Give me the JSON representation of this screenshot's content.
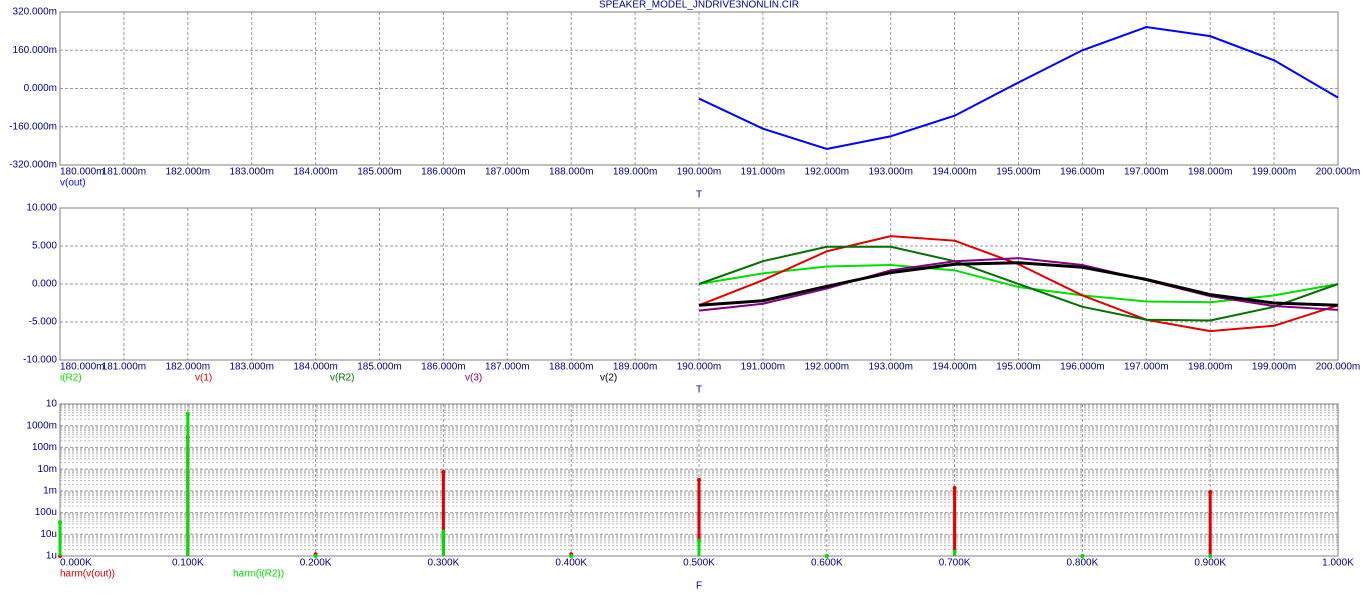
{
  "chart_data": [
    {
      "type": "line",
      "title": "SPEAKER_MODEL_JNDRIVE3NONLIN.CIR",
      "xlabel": "T",
      "xlim": [
        0.18,
        0.2
      ],
      "xticks": [
        {
          "value": 0.18,
          "label": "180.000m"
        },
        {
          "value": 0.181,
          "label": "181.000m"
        },
        {
          "value": 0.182,
          "label": "182.000m"
        },
        {
          "value": 0.183,
          "label": "183.000m"
        },
        {
          "value": 0.184,
          "label": "184.000m"
        },
        {
          "value": 0.185,
          "label": "185.000m"
        },
        {
          "value": 0.186,
          "label": "186.000m"
        },
        {
          "value": 0.187,
          "label": "187.000m"
        },
        {
          "value": 0.188,
          "label": "188.000m"
        },
        {
          "value": 0.189,
          "label": "189.000m"
        },
        {
          "value": 0.19,
          "label": "190.000m"
        },
        {
          "value": 0.191,
          "label": "191.000m"
        },
        {
          "value": 0.192,
          "label": "192.000m"
        },
        {
          "value": 0.193,
          "label": "193.000m"
        },
        {
          "value": 0.194,
          "label": "194.000m"
        },
        {
          "value": 0.195,
          "label": "195.000m"
        },
        {
          "value": 0.196,
          "label": "196.000m"
        },
        {
          "value": 0.197,
          "label": "197.000m"
        },
        {
          "value": 0.198,
          "label": "198.000m"
        },
        {
          "value": 0.199,
          "label": "199.000m"
        },
        {
          "value": 0.2,
          "label": "200.000m"
        }
      ],
      "ylim": [
        -0.32,
        0.32
      ],
      "yticks": [
        {
          "value": 0.32,
          "label": "320.000m"
        },
        {
          "value": 0.16,
          "label": "160.000m"
        },
        {
          "value": 0,
          "label": "0.000m"
        },
        {
          "value": -0.16,
          "label": "-160.000m"
        },
        {
          "value": -0.32,
          "label": "-320.000m"
        }
      ],
      "grid": true,
      "x": [
        0.19,
        0.191,
        0.192,
        0.193,
        0.194,
        0.195,
        0.196,
        0.197,
        0.198,
        0.199,
        0.2
      ],
      "series": [
        {
          "name": "v(out)",
          "color": "#0000ff",
          "values": [
            -0.042,
            -0.168,
            -0.253,
            -0.2,
            -0.114,
            0.025,
            0.16,
            0.257,
            0.219,
            0.118,
            -0.038
          ]
        }
      ]
    },
    {
      "type": "line",
      "xlabel": "T",
      "xlim": [
        0.18,
        0.2
      ],
      "xticks": [
        {
          "value": 0.18,
          "label": "180.000m"
        },
        {
          "value": 0.181,
          "label": "181.000m"
        },
        {
          "value": 0.182,
          "label": "182.000m"
        },
        {
          "value": 0.183,
          "label": "183.000m"
        },
        {
          "value": 0.184,
          "label": "184.000m"
        },
        {
          "value": 0.185,
          "label": "185.000m"
        },
        {
          "value": 0.186,
          "label": "186.000m"
        },
        {
          "value": 0.187,
          "label": "187.000m"
        },
        {
          "value": 0.188,
          "label": "188.000m"
        },
        {
          "value": 0.189,
          "label": "189.000m"
        },
        {
          "value": 0.19,
          "label": "190.000m"
        },
        {
          "value": 0.191,
          "label": "191.000m"
        },
        {
          "value": 0.192,
          "label": "192.000m"
        },
        {
          "value": 0.193,
          "label": "193.000m"
        },
        {
          "value": 0.194,
          "label": "194.000m"
        },
        {
          "value": 0.195,
          "label": "195.000m"
        },
        {
          "value": 0.196,
          "label": "196.000m"
        },
        {
          "value": 0.197,
          "label": "197.000m"
        },
        {
          "value": 0.198,
          "label": "198.000m"
        },
        {
          "value": 0.199,
          "label": "199.000m"
        },
        {
          "value": 0.2,
          "label": "200.000m"
        }
      ],
      "ylim": [
        -10,
        10
      ],
      "yticks": [
        {
          "value": 10,
          "label": "10.000"
        },
        {
          "value": 5,
          "label": "5.000"
        },
        {
          "value": 0,
          "label": "0.000"
        },
        {
          "value": -5,
          "label": "-5.000"
        },
        {
          "value": -10,
          "label": "-10.000"
        }
      ],
      "grid": true,
      "x": [
        0.19,
        0.191,
        0.192,
        0.193,
        0.194,
        0.195,
        0.196,
        0.197,
        0.198,
        0.199,
        0.2
      ],
      "series": [
        {
          "name": "i(R2)",
          "color": "#00e000",
          "values": [
            0,
            1.4,
            2.3,
            2.5,
            1.8,
            -0.4,
            -1.5,
            -2.3,
            -2.4,
            -1.5,
            0
          ]
        },
        {
          "name": "v(1)",
          "color": "#e00000",
          "values": [
            -2.8,
            0.5,
            4.3,
            6.3,
            5.7,
            2.6,
            -1.5,
            -4.7,
            -6.2,
            -5.5,
            -2.8
          ]
        },
        {
          "name": "v(R2)",
          "color": "#007000",
          "values": [
            0,
            3,
            4.9,
            4.9,
            3,
            0,
            -3,
            -4.7,
            -4.8,
            -3,
            0
          ]
        },
        {
          "name": "v(3)",
          "color": "#800080",
          "values": [
            -3.5,
            -2.6,
            -0.6,
            1.8,
            3,
            3.4,
            2.5,
            0.5,
            -1.6,
            -2.9,
            -3.4
          ]
        },
        {
          "name": "v(2)",
          "color": "#000000",
          "values": [
            -2.8,
            -2.2,
            -0.3,
            1.5,
            2.6,
            2.8,
            2.2,
            0.6,
            -1.4,
            -2.5,
            -2.8
          ]
        }
      ]
    },
    {
      "type": "stem",
      "xlabel": "F",
      "xlim": [
        0,
        1000
      ],
      "xticks": [
        {
          "value": 0,
          "label": "0.000K"
        },
        {
          "value": 100,
          "label": "0.100K"
        },
        {
          "value": 200,
          "label": "0.200K"
        },
        {
          "value": 300,
          "label": "0.300K"
        },
        {
          "value": 400,
          "label": "0.400K"
        },
        {
          "value": 500,
          "label": "0.500K"
        },
        {
          "value": 600,
          "label": "0.600K"
        },
        {
          "value": 700,
          "label": "0.700K"
        },
        {
          "value": 800,
          "label": "0.800K"
        },
        {
          "value": 900,
          "label": "0.900K"
        },
        {
          "value": 1000,
          "label": "1.000K"
        }
      ],
      "ylim": [
        1e-06,
        10
      ],
      "log_y": true,
      "yticks": [
        10,
        {
          "value": 1,
          "label": "1000m"
        },
        {
          "value": 0.1,
          "label": "100m"
        },
        {
          "value": 0.01,
          "label": "10m"
        },
        {
          "value": 0.001,
          "label": "1m"
        },
        {
          "value": 0.0001,
          "label": "100u"
        },
        {
          "value": 1e-05,
          "label": "10u"
        },
        {
          "value": 1e-06,
          "label": "1u"
        }
      ],
      "grid": true,
      "x": [
        0,
        100,
        200,
        300,
        400,
        500,
        600,
        700,
        800,
        900
      ],
      "series": [
        {
          "name": "harm(v(out))",
          "color": "#e00000",
          "values": [
            1e-06,
            0.3,
            1.2e-06,
            0.0074,
            1.2e-06,
            0.0032,
            1e-06,
            0.00135,
            1e-06,
            0.00089
          ]
        },
        {
          "name": "harm(i(R2))",
          "color": "#00e000",
          "values": [
            3.6e-05,
            3.5,
            1e-06,
            1.3e-05,
            1e-06,
            5e-06,
            1e-06,
            1.6e-06,
            1e-06,
            1e-06
          ]
        }
      ]
    }
  ]
}
